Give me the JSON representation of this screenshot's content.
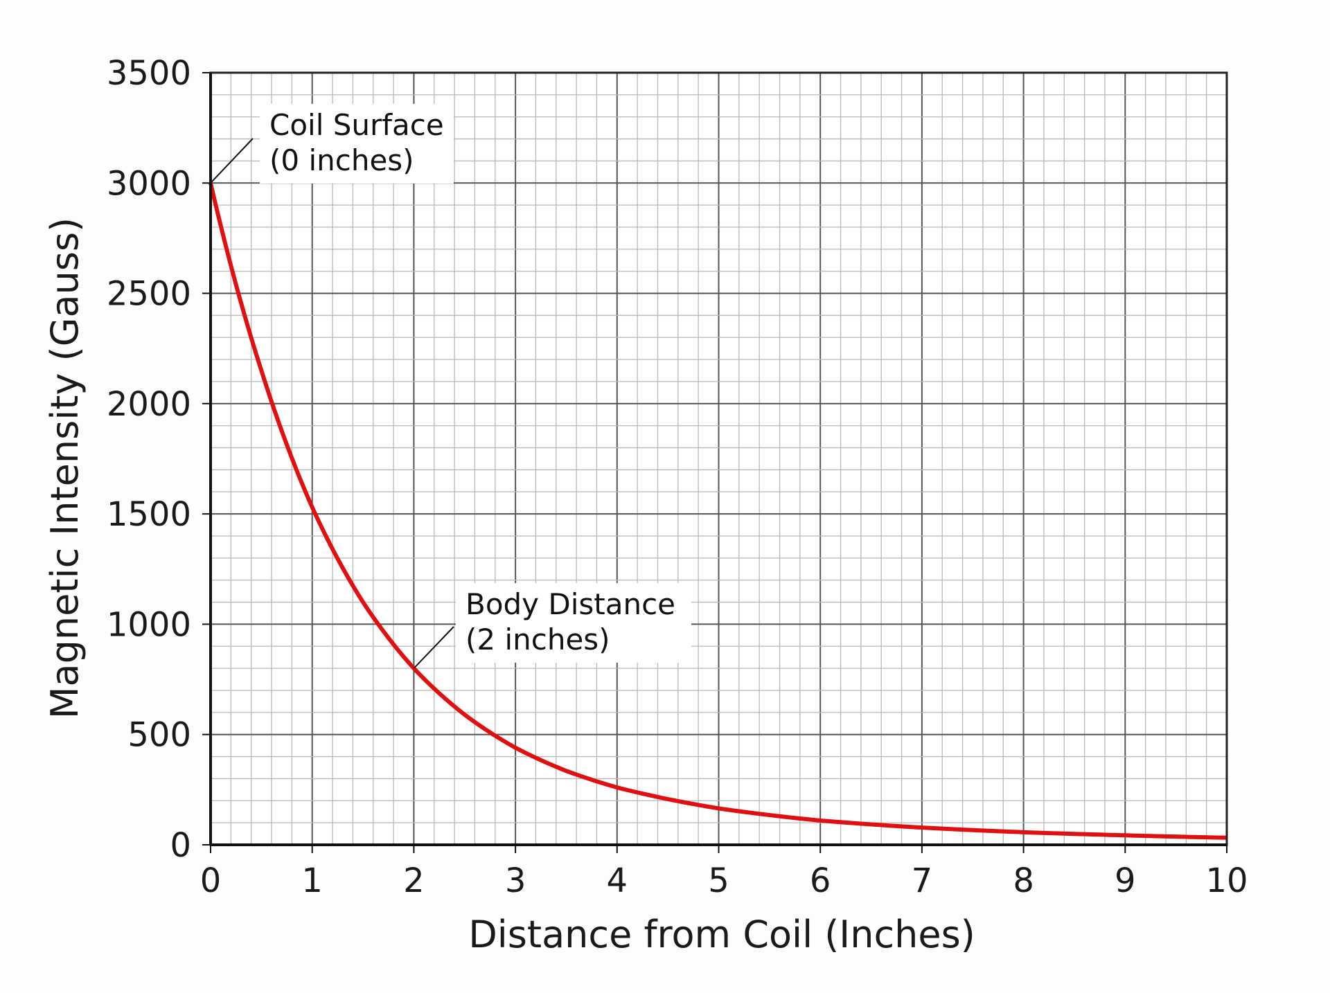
{
  "chart_data": {
    "type": "line",
    "title": "",
    "xlabel": "Distance from Coil (Inches)",
    "ylabel": "Magnetic Intensity (Gauss)",
    "xlim": [
      0,
      10
    ],
    "ylim": [
      0,
      3500
    ],
    "xticks": [
      0,
      1,
      2,
      3,
      4,
      5,
      6,
      7,
      8,
      9,
      10
    ],
    "yticks": [
      0,
      500,
      1000,
      1500,
      2000,
      2500,
      3000,
      3500
    ],
    "x_major_step": 1,
    "x_minor_step": 0.2,
    "y_major_step": 500,
    "y_minor_step": 100,
    "grid": true,
    "series": [
      {
        "color": "#e01010",
        "x": [
          0,
          0.5,
          1,
          1.5,
          2,
          2.5,
          3,
          3.5,
          4,
          5,
          6,
          7,
          8,
          9,
          10
        ],
        "y": [
          3000,
          2150,
          1530,
          1100,
          800,
          590,
          440,
          335,
          260,
          165,
          110,
          78,
          57,
          43,
          32
        ]
      }
    ],
    "annotations": [
      {
        "lines": [
          "Coil Surface",
          "(0 inches)"
        ],
        "x": 0,
        "y": 3000
      },
      {
        "lines": [
          "Body Distance",
          "(2 inches)"
        ],
        "x": 2,
        "y": 800
      }
    ]
  }
}
